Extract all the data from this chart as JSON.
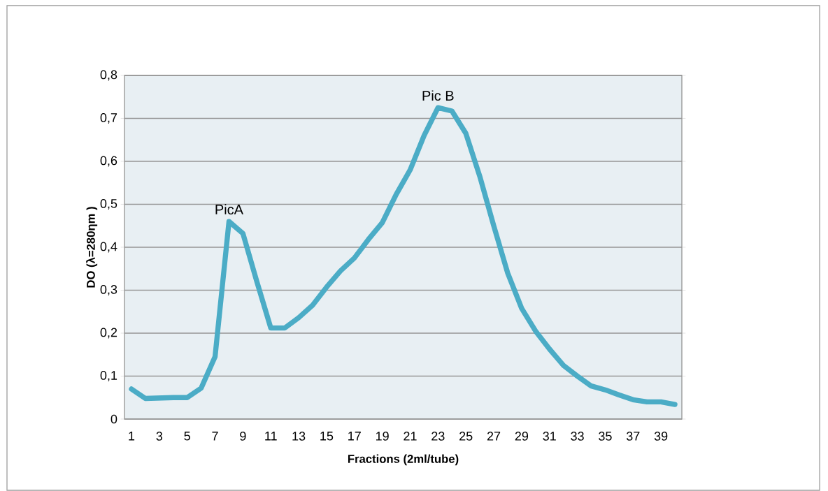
{
  "chart_data": {
    "type": "line",
    "xlabel": "Fractions (2ml/tube)",
    "ylabel": "DO (λ=280ηm )",
    "categories": [
      "1",
      null,
      "3",
      null,
      "5",
      null,
      "7",
      null,
      "9",
      null,
      "11",
      null,
      "13",
      null,
      "15",
      null,
      "17",
      null,
      "19",
      null,
      "21",
      null,
      "23",
      null,
      "25",
      null,
      "27",
      null,
      "29",
      null,
      "31",
      null,
      "33",
      null,
      "35",
      null,
      "37",
      null,
      "39",
      null
    ],
    "series": [
      {
        "color": "#4bacc6",
        "values": [
          0.07,
          0.048,
          0.049,
          0.05,
          0.05,
          0.072,
          0.145,
          0.46,
          0.432,
          0.32,
          0.212,
          0.212,
          0.236,
          0.265,
          0.307,
          0.345,
          0.375,
          0.418,
          0.457,
          0.523,
          0.58,
          0.66,
          0.725,
          0.717,
          0.665,
          0.565,
          0.45,
          0.34,
          0.258,
          0.205,
          0.163,
          0.125,
          0.1,
          0.077,
          0.068,
          0.056,
          0.045,
          0.04,
          0.04,
          0.034
        ]
      }
    ],
    "ylim": [
      0,
      0.8
    ],
    "yticks": [
      0,
      {
        "value": 0.1,
        "label": "0,1"
      },
      {
        "value": 0.2,
        "label": "0,2"
      },
      {
        "value": 0.3,
        "label": "0,3"
      },
      {
        "value": 0.4,
        "label": "0,4"
      },
      {
        "value": 0.5,
        "label": "0,5"
      },
      {
        "value": 0.6,
        "label": "0,6"
      },
      {
        "value": 0.7,
        "label": "0,7"
      },
      {
        "value": 0.8,
        "label": "0,8"
      }
    ],
    "grid": "y",
    "annotations": [
      {
        "text": "PicA",
        "y": 0.46
      },
      {
        "text": "Pic B",
        "x": "23",
        "y": 0.725
      }
    ]
  }
}
